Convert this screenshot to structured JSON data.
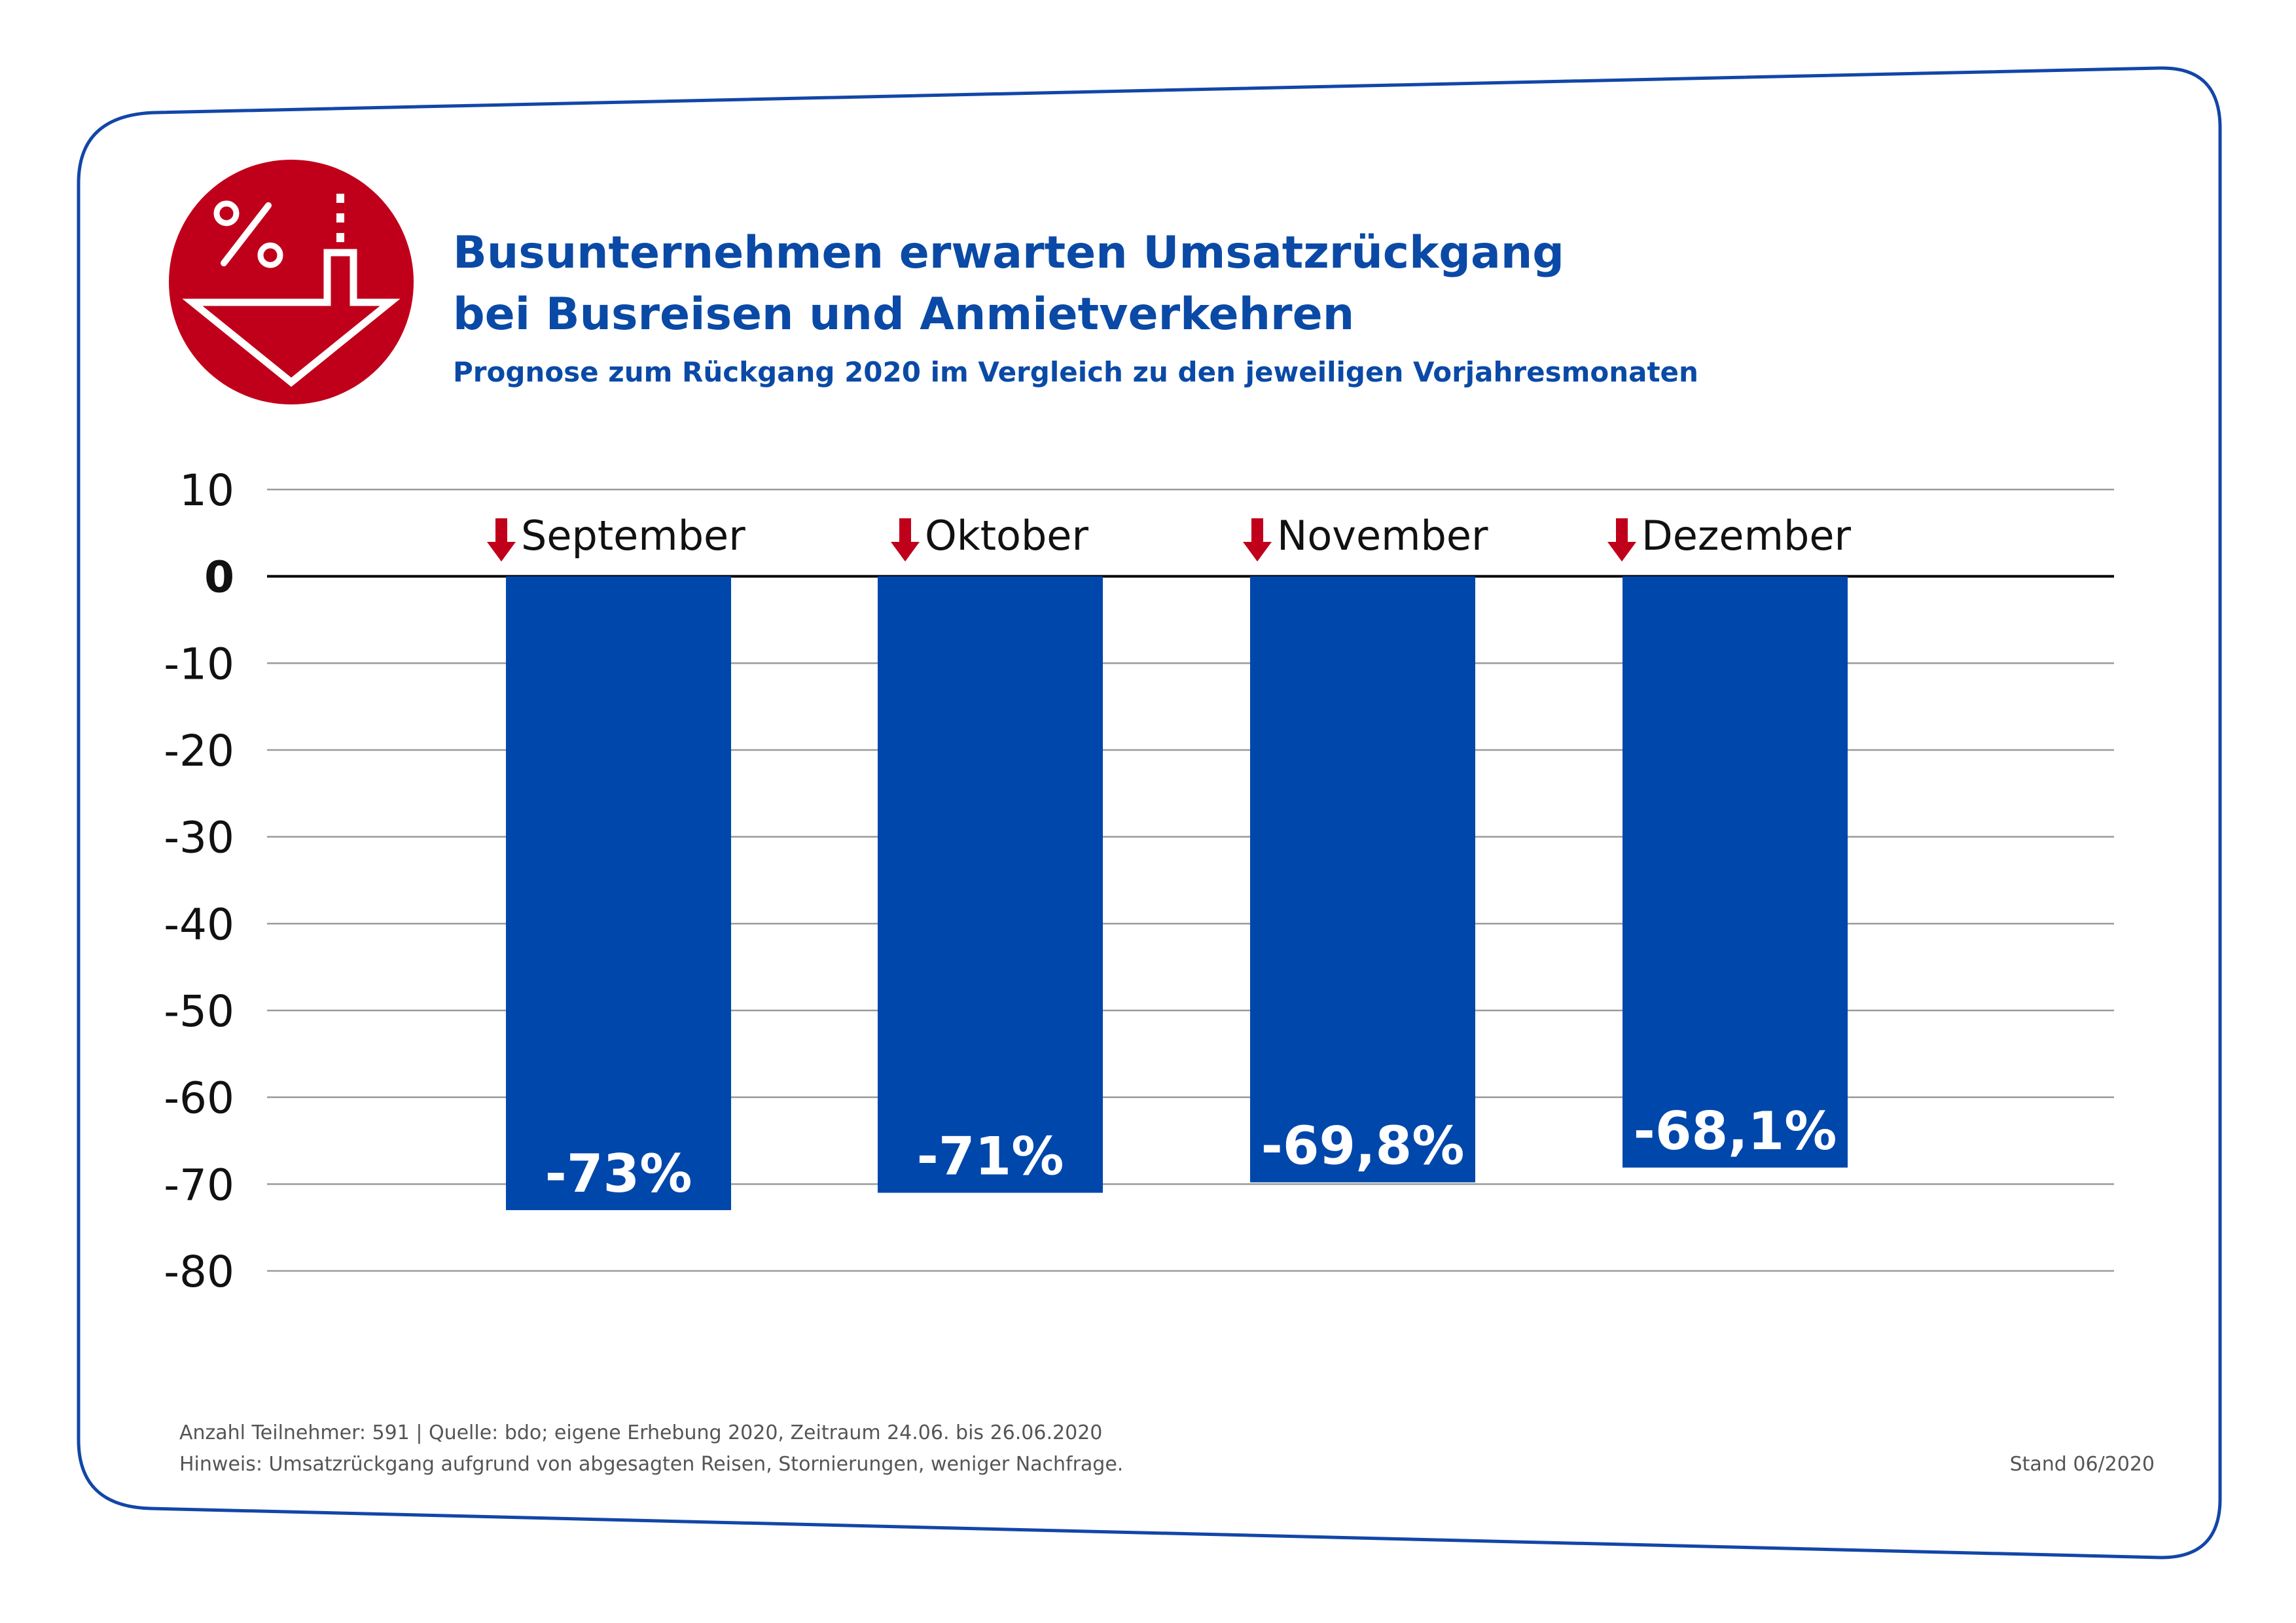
{
  "header": {
    "title_line1": "Busunternehmen erwarten Umsatzrückgang",
    "title_line2": "bei Busreisen und Anmietverkehren",
    "subtitle": "Prognose zum Rückgang 2020 im Vergleich zu den jeweiligen Vorjahresmonaten"
  },
  "logo": {
    "icon": "percent-down-arrow-icon",
    "symbol": "%",
    "color": "#c0001a"
  },
  "colors": {
    "bar": "#0047ab",
    "title": "#0a4aa6",
    "arrow": "#c0001a",
    "frame": "#1246a8",
    "grid": "#9a9a9a"
  },
  "chart_data": {
    "type": "bar",
    "categories": [
      "September",
      "Oktober",
      "November",
      "Dezember"
    ],
    "values": [
      -73,
      -71,
      -69.8,
      -68.1
    ],
    "value_labels": [
      "-73%",
      "-71%",
      "-69,8%",
      "-68,1%"
    ],
    "category_marker": "down-arrow-icon",
    "ylim": [
      -80,
      10
    ],
    "yticks": [
      10,
      0,
      -10,
      -20,
      -30,
      -40,
      -50,
      -60,
      -70,
      -80
    ],
    "grid": true,
    "xlabel": "",
    "ylabel": ""
  },
  "footer": {
    "note1": "Anzahl Teilnehmer: 591 | Quelle: bdo; eigene Erhebung 2020, Zeitraum 24.06. bis 26.06.2020",
    "note2": "Hinweis: Umsatzrückgang aufgrund von abgesagten Reisen, Stornierungen, weniger Nachfrage.",
    "stand": "Stand 06/2020"
  }
}
